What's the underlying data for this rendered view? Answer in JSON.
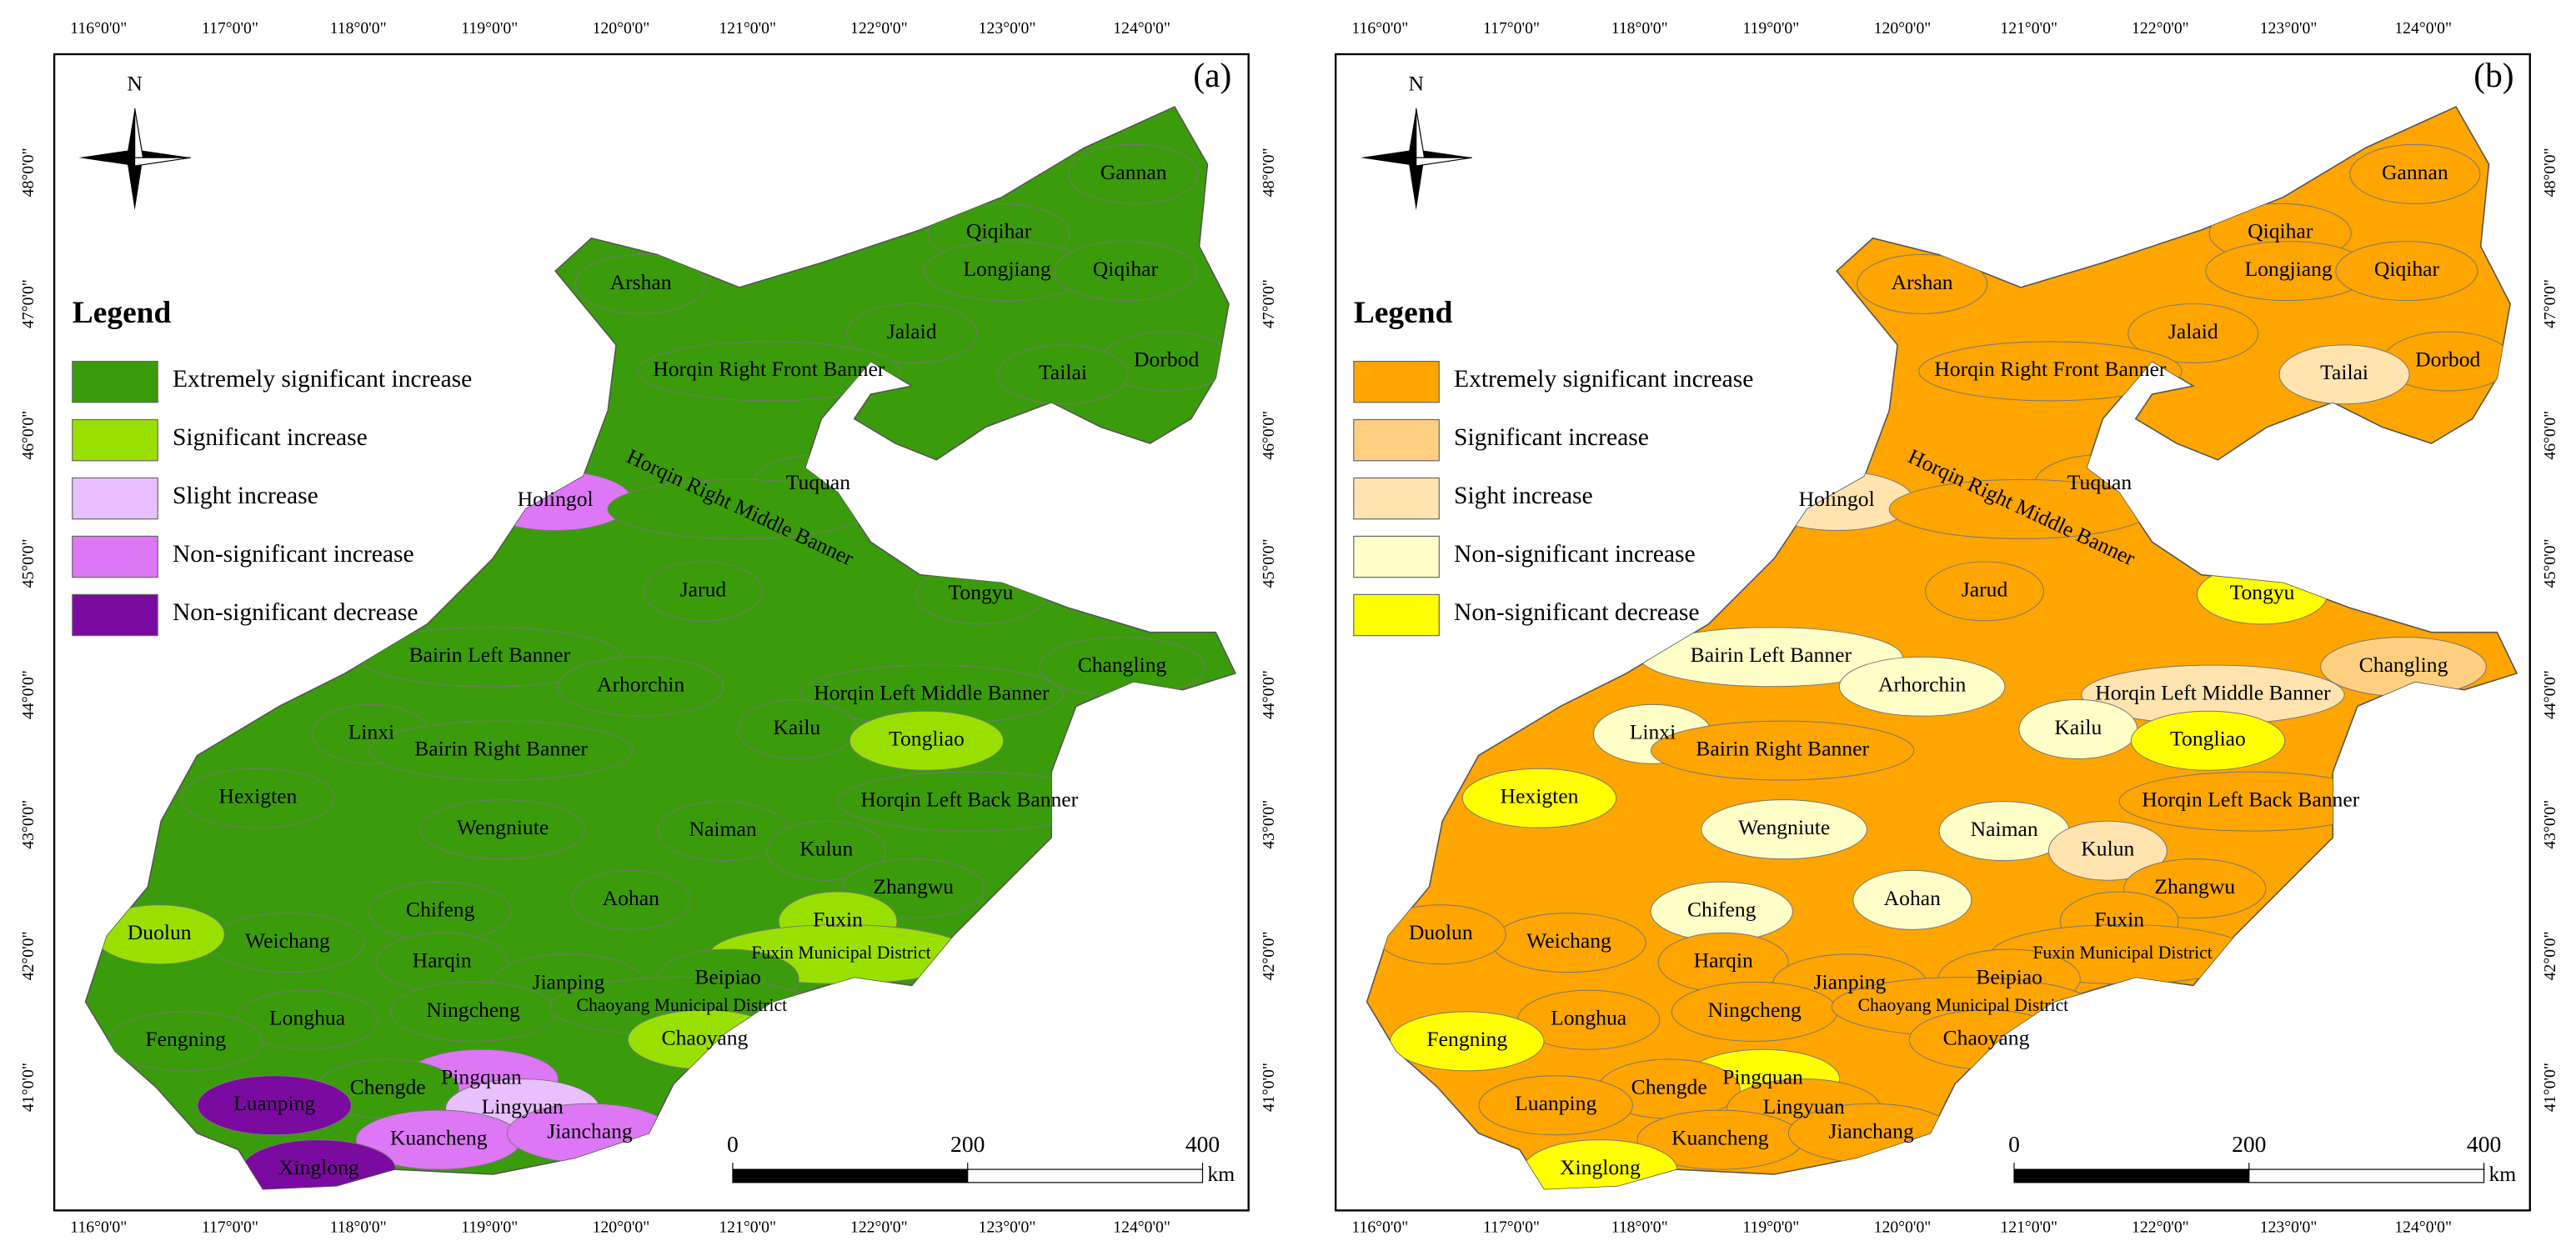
{
  "longitude_labels": [
    "116°0'0\"",
    "117°0'0\"",
    "118°0'0\"",
    "119°0'0\"",
    "120°0'0\"",
    "121°0'0\"",
    "122°0'0\"",
    "123°0'0\"",
    "124°0'0\""
  ],
  "latitude_labels": [
    "48°0'0\"",
    "47°0'0\"",
    "46°0'0\"",
    "45°0'0\"",
    "44°0'0\"",
    "43°0'0\"",
    "42°0'0\"",
    "41°0'0\""
  ],
  "scale_bar": {
    "ticks": [
      0,
      200,
      400
    ],
    "unit": "km"
  },
  "regions": [
    "Gannan",
    "Qiqihar",
    "Longjiang",
    "Qiqihar",
    "Arshan",
    "Jalaid",
    "Dorbod",
    "Horqin Right Front Banner",
    "Tailai",
    "Holingol",
    "Tuquan",
    "Horqin Right Middle Banner",
    "Jarud",
    "Tongyu",
    "Bairin Left Banner",
    "Changling",
    "Arhorchin",
    "Horqin Left Middle Banner",
    "Linxi",
    "Kailu",
    "Bairin Right Banner",
    "Tongliao",
    "Hexigten",
    "Horqin Left Back Banner",
    "Wengniute",
    "Naiman",
    "Kulun",
    "Zhangwu",
    "Chifeng",
    "Aohan",
    "Fuxin",
    "Weichang",
    "Duolun",
    "Fuxin Municipal District",
    "Harqin",
    "Jianping",
    "Beipiao",
    "Ningcheng",
    "Chaoyang Municipal District",
    "Longhua",
    "Fengning",
    "Chaoyang",
    "Pingquan",
    "Chengde",
    "Lingyuan",
    "Luanping",
    "Kuancheng",
    "Jianchang",
    "Xinglong"
  ],
  "panels": [
    {
      "label": "(a)",
      "north": "N",
      "legend": {
        "title": "Legend",
        "items": [
          {
            "label": "Extremely significant increase",
            "color": "#3a9c0a"
          },
          {
            "label": "Significant increase",
            "color": "#99e000"
          },
          {
            "label": "Slight increase",
            "color": "#e8bfff"
          },
          {
            "label": "Non-significant increase",
            "color": "#dd77f5"
          },
          {
            "label": "Non-significant decrease",
            "color": "#7a0aa0"
          }
        ]
      },
      "region_colors": [
        "#3a9c0a",
        "#3a9c0a",
        "#3a9c0a",
        "#3a9c0a",
        "#3a9c0a",
        "#3a9c0a",
        "#3a9c0a",
        "#3a9c0a",
        "#3a9c0a",
        "#dd77f5",
        "#3a9c0a",
        "#3a9c0a",
        "#3a9c0a",
        "#3a9c0a",
        "#3a9c0a",
        "#3a9c0a",
        "#3a9c0a",
        "#3a9c0a",
        "#3a9c0a",
        "#3a9c0a",
        "#3a9c0a",
        "#99e000",
        "#3a9c0a",
        "#3a9c0a",
        "#3a9c0a",
        "#3a9c0a",
        "#3a9c0a",
        "#3a9c0a",
        "#3a9c0a",
        "#3a9c0a",
        "#99e000",
        "#3a9c0a",
        "#99e000",
        "#99e000",
        "#3a9c0a",
        "#3a9c0a",
        "#3a9c0a",
        "#3a9c0a",
        "#3a9c0a",
        "#3a9c0a",
        "#3a9c0a",
        "#99e000",
        "#dd77f5",
        "#3a9c0a",
        "#e8bfff",
        "#7a0aa0",
        "#dd77f5",
        "#dd77f5",
        "#7a0aa0"
      ]
    },
    {
      "label": "(b)",
      "north": "N",
      "legend": {
        "title": "Legend",
        "items": [
          {
            "label": "Extremely significant increase",
            "color": "#ffa500"
          },
          {
            "label": "Significant increase",
            "color": "#ffcf80"
          },
          {
            "label": "Sight increase",
            "color": "#ffe4b0"
          },
          {
            "label": "Non-significant increase",
            "color": "#ffffc8"
          },
          {
            "label": "Non-significant decrease",
            "color": "#ffff00"
          }
        ]
      },
      "region_colors": [
        "#ffa500",
        "#ffa500",
        "#ffa500",
        "#ffa500",
        "#ffa500",
        "#ffa500",
        "#ffa500",
        "#ffa500",
        "#ffe4b0",
        "#ffe4b0",
        "#ffa500",
        "#ffa500",
        "#ffa500",
        "#ffff00",
        "#ffffc8",
        "#ffcf80",
        "#ffffc8",
        "#ffe4b0",
        "#ffffc8",
        "#ffffc8",
        "#ffa500",
        "#ffff00",
        "#ffff00",
        "#ffa500",
        "#ffffc8",
        "#ffffc8",
        "#ffe4b0",
        "#ffa500",
        "#ffffc8",
        "#ffffc8",
        "#ffa500",
        "#ffa500",
        "#ffa500",
        "#ffa500",
        "#ffa500",
        "#ffa500",
        "#ffa500",
        "#ffa500",
        "#ffa500",
        "#ffa500",
        "#ffff00",
        "#ffa500",
        "#ffff00",
        "#ffa500",
        "#ffa500",
        "#ffa500",
        "#ffa500",
        "#ffa500",
        "#ffff00"
      ]
    }
  ]
}
